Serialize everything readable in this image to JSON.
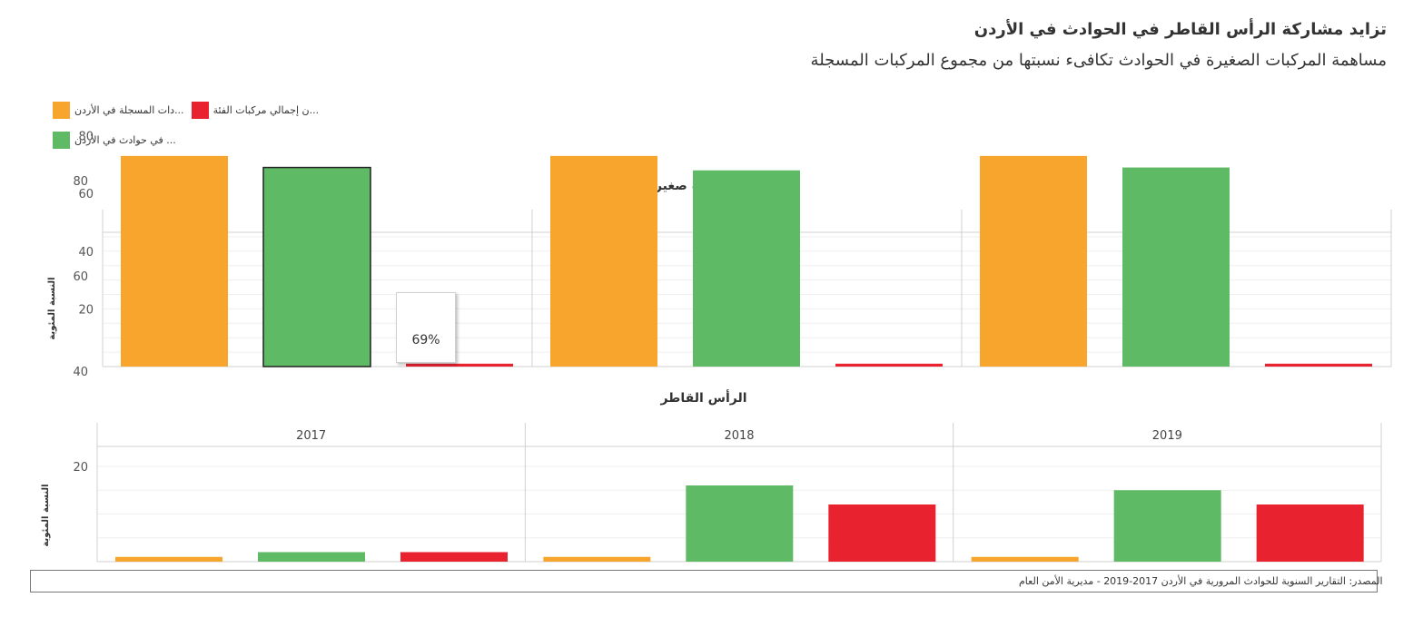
{
  "title": "تزايد مشاركة الرأس القاطر في الحوادث في الأردن",
  "subtitle": "مساهمة المركبات الصغيرة في الحوادث تكافىء نسبتها من مجموع المركبات المسجلة",
  "legend": [
    {
      "label": "...دات المسجلة في الأردن",
      "color": "#f7a52c"
    },
    {
      "label": "...ن إجمالي مركبات الفئة",
      "color": "#e8222f"
    },
    {
      "label": "... في حوادث في الأردن",
      "color": "#5fba65"
    }
  ],
  "source": "المصدر: التقارير السنوية للحوادث المرورية في الأردن 2017-2019 - مديرية الأمن العام",
  "tooltip": {
    "value": "69%"
  },
  "chart_data": [
    {
      "type": "bar",
      "title": "سيارات ركوب صغيرة",
      "ylabel": "النسبة المئوية",
      "ylim": [
        0,
        100
      ],
      "yticks": [
        20,
        40,
        60,
        80
      ],
      "grid": true,
      "panels": [
        "2017",
        "2018",
        "2019"
      ],
      "series_colors": [
        "#f7a52c",
        "#5fba65",
        "#e8222f"
      ],
      "values": [
        [
          73,
          69,
          1
        ],
        [
          73,
          68,
          1
        ],
        [
          73,
          69,
          1
        ]
      ]
    },
    {
      "type": "bar",
      "title": "الرأس القاطر",
      "ylabel": "النسبة المئوية",
      "ylim": [
        0,
        100
      ],
      "yticks": [
        20,
        40,
        60,
        80
      ],
      "grid": true,
      "panels": [
        "2017",
        "2018",
        "2019"
      ],
      "series_colors": [
        "#f7a52c",
        "#5fba65",
        "#e8222f"
      ],
      "values": [
        [
          1,
          2,
          2
        ],
        [
          1,
          16,
          12
        ],
        [
          1,
          15,
          12
        ]
      ]
    }
  ]
}
